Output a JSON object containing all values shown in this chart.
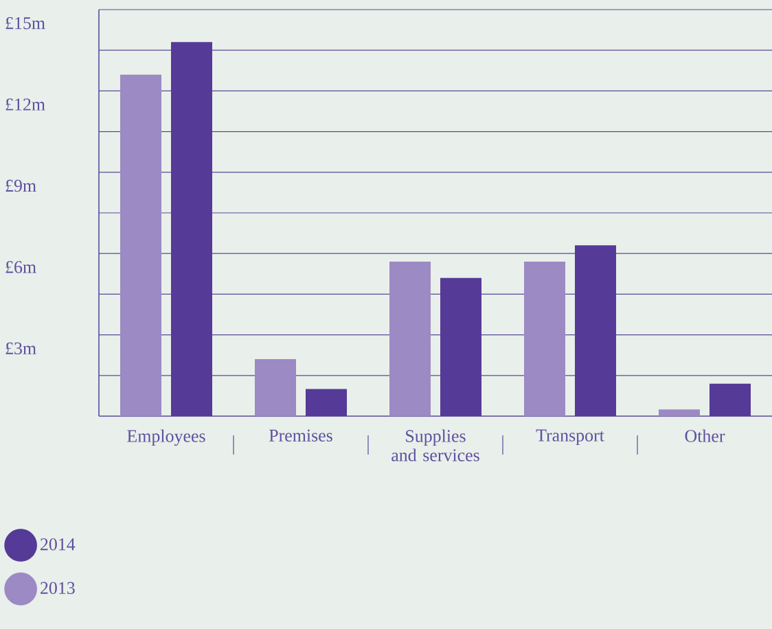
{
  "chart_data": {
    "type": "bar",
    "categories": [
      "Employees",
      "Premises",
      "Supplies and services",
      "Transport",
      "Other"
    ],
    "series": [
      {
        "name": "2013",
        "color": "#9b8ac4",
        "values": [
          12.6,
          2.1,
          5.7,
          5.7,
          0.25
        ]
      },
      {
        "name": "2014",
        "color": "#553a97",
        "values": [
          13.8,
          1.0,
          5.1,
          6.3,
          1.2
        ]
      }
    ],
    "ylim": [
      0,
      15
    ],
    "yticks": [
      {
        "value": 1.5,
        "label": null
      },
      {
        "value": 3,
        "label": "£3m"
      },
      {
        "value": 4.5,
        "label": null
      },
      {
        "value": 6,
        "label": "£6m"
      },
      {
        "value": 7.5,
        "label": null
      },
      {
        "value": 9,
        "label": "£9m"
      },
      {
        "value": 10.5,
        "label": null
      },
      {
        "value": 12,
        "label": "£12m"
      },
      {
        "value": 13.5,
        "label": null
      },
      {
        "value": 15,
        "label": "£15m"
      }
    ],
    "grid": "y",
    "legend": "bottom left"
  }
}
